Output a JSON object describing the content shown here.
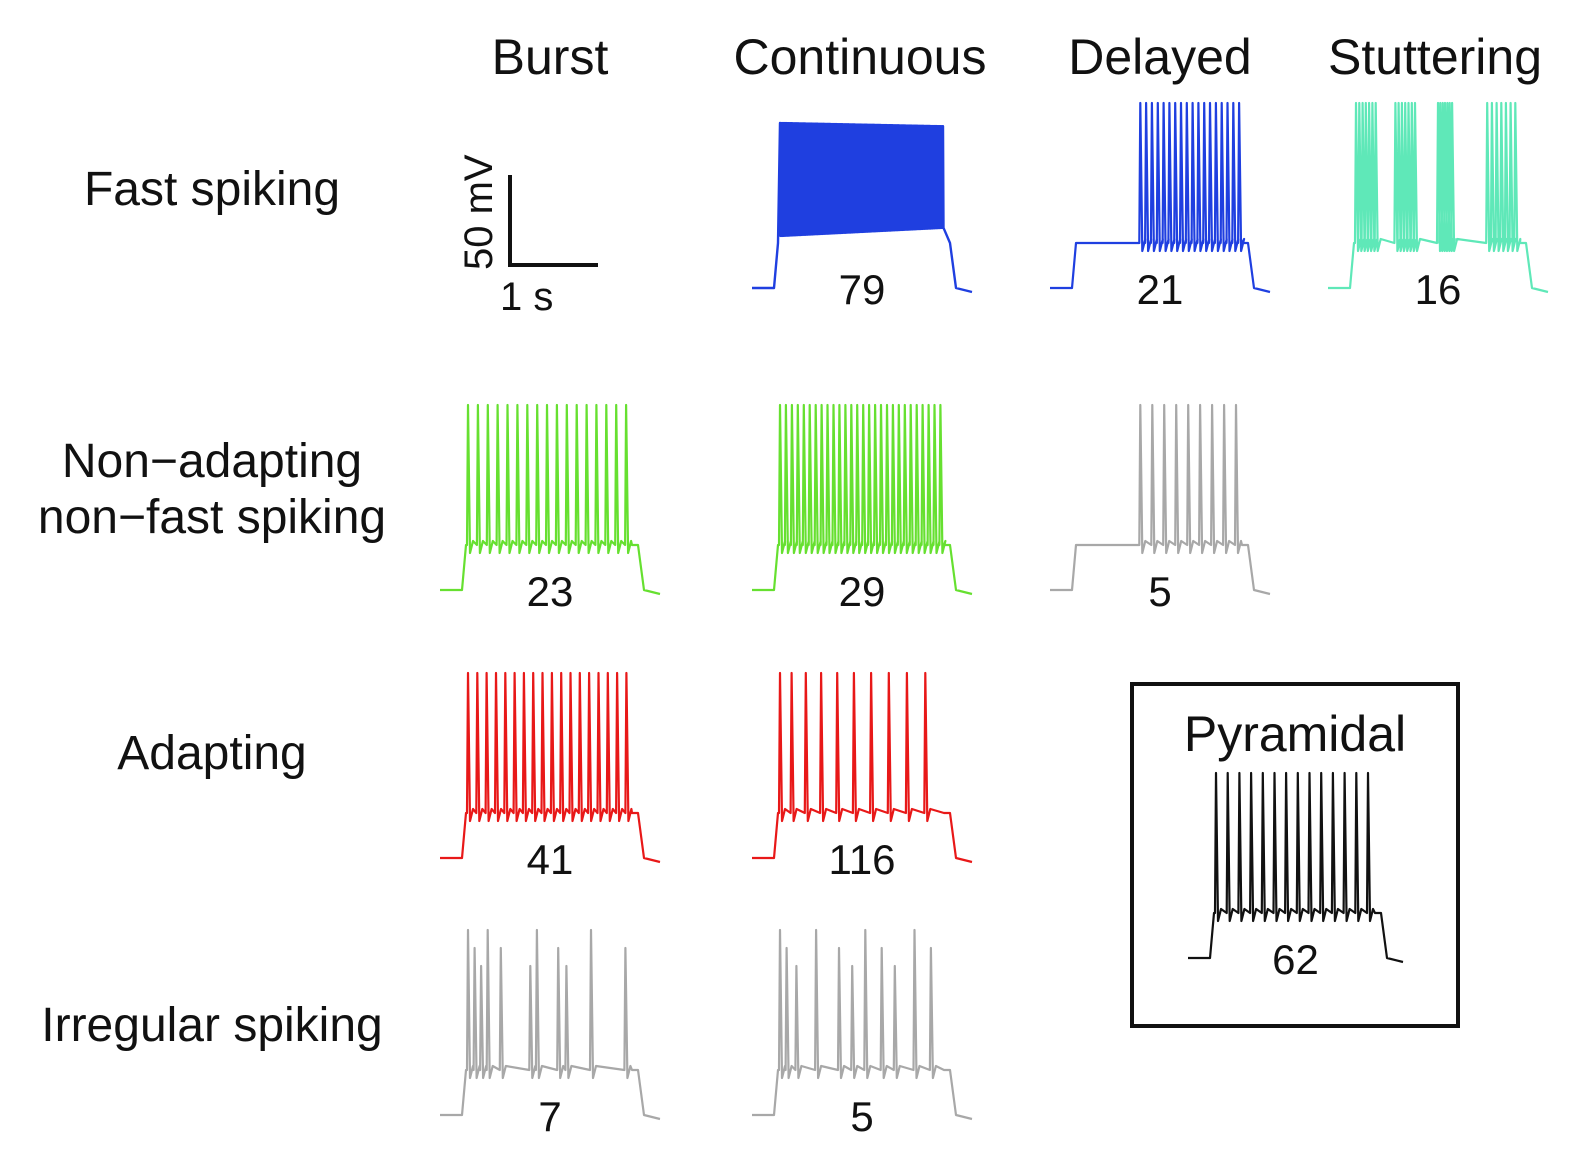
{
  "columns": [
    "Burst",
    "Continuous",
    "Delayed",
    "Stuttering"
  ],
  "rows": [
    {
      "label_line1": "Fast spiking",
      "label_line2": ""
    },
    {
      "label_line1": "Non−adapting",
      "label_line2": "non−fast spiking"
    },
    {
      "label_line1": "Adapting",
      "label_line2": ""
    },
    {
      "label_line1": "Irregular spiking",
      "label_line2": ""
    }
  ],
  "scale_bar": {
    "voltage": "50 mV",
    "time": "1 s"
  },
  "traces": [
    {
      "row": 0,
      "col": 1,
      "count": "79",
      "color": "#1f3fe0",
      "spikes": 160,
      "style": "dense"
    },
    {
      "row": 0,
      "col": 2,
      "count": "21",
      "color": "#1f3fe0",
      "spikes": 18,
      "style": "delayed"
    },
    {
      "row": 0,
      "col": 3,
      "count": "16",
      "color": "#5fe8b8",
      "spikes": 28,
      "style": "stutter"
    },
    {
      "row": 1,
      "col": 0,
      "count": "23",
      "color": "#66e030",
      "spikes": 17,
      "style": "burst"
    },
    {
      "row": 1,
      "col": 1,
      "count": "29",
      "color": "#66e030",
      "spikes": 28,
      "style": "regular"
    },
    {
      "row": 1,
      "col": 2,
      "count": "5",
      "color": "#a8a8a8",
      "spikes": 9,
      "style": "delayed-sparse"
    },
    {
      "row": 2,
      "col": 0,
      "count": "41",
      "color": "#e81818",
      "spikes": 18,
      "style": "burst"
    },
    {
      "row": 2,
      "col": 1,
      "count": "116",
      "color": "#e81818",
      "spikes": 10,
      "style": "adapting"
    },
    {
      "row": 3,
      "col": 0,
      "count": "7",
      "color": "#a8a8a8",
      "spikes": 11,
      "style": "irregular"
    },
    {
      "row": 3,
      "col": 1,
      "count": "5",
      "color": "#a8a8a8",
      "spikes": 11,
      "style": "irregular2"
    }
  ],
  "pyramidal": {
    "title": "Pyramidal",
    "count": "62",
    "color": "#111111",
    "spikes": 14
  }
}
